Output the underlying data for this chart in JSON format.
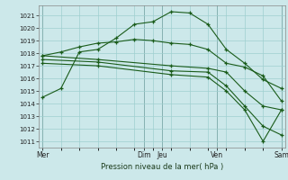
{
  "title": "Pression niveau de la mer( hPa )",
  "bg_color": "#cce8ea",
  "grid_color": "#9fcfcf",
  "line_color": "#1a5c1a",
  "ylim": [
    1010.5,
    1021.8
  ],
  "yticks": [
    1011,
    1012,
    1013,
    1014,
    1015,
    1016,
    1017,
    1018,
    1019,
    1020,
    1021
  ],
  "series": [
    {
      "x": [
        0,
        1,
        2,
        3,
        4,
        5,
        6,
        7,
        8,
        9,
        10,
        11,
        12,
        13
      ],
      "y": [
        1014.5,
        1015.2,
        1018.1,
        1018.3,
        1019.2,
        1020.3,
        1020.5,
        1021.3,
        1021.2,
        1020.3,
        1018.3,
        1017.2,
        1015.9,
        1015.2
      ]
    },
    {
      "x": [
        0,
        1,
        2,
        3,
        4,
        5,
        6,
        7,
        8,
        9,
        10,
        11,
        12,
        13
      ],
      "y": [
        1017.8,
        1018.1,
        1018.5,
        1018.8,
        1018.9,
        1019.1,
        1019.0,
        1018.8,
        1018.7,
        1018.3,
        1017.2,
        1016.9,
        1016.2,
        1014.2
      ]
    },
    {
      "x": [
        0,
        3,
        7,
        9,
        10,
        11,
        12,
        13
      ],
      "y": [
        1017.8,
        1017.5,
        1017.0,
        1016.8,
        1016.5,
        1015.0,
        1013.8,
        1013.5
      ]
    },
    {
      "x": [
        0,
        3,
        7,
        9,
        10,
        11,
        12,
        13
      ],
      "y": [
        1017.5,
        1017.3,
        1016.6,
        1016.5,
        1015.4,
        1013.8,
        1012.2,
        1011.5
      ]
    },
    {
      "x": [
        0,
        3,
        7,
        9,
        10,
        11,
        12,
        13
      ],
      "y": [
        1017.2,
        1017.0,
        1016.3,
        1016.1,
        1015.0,
        1013.5,
        1011.0,
        1013.5
      ]
    }
  ],
  "xtick_positions": [
    0,
    5.5,
    6.5,
    9.5,
    13
  ],
  "xtick_labels": [
    "Mer",
    "Dim",
    "Jeu",
    "Ven",
    "Sam"
  ],
  "xlim": [
    -0.2,
    13.2
  ]
}
